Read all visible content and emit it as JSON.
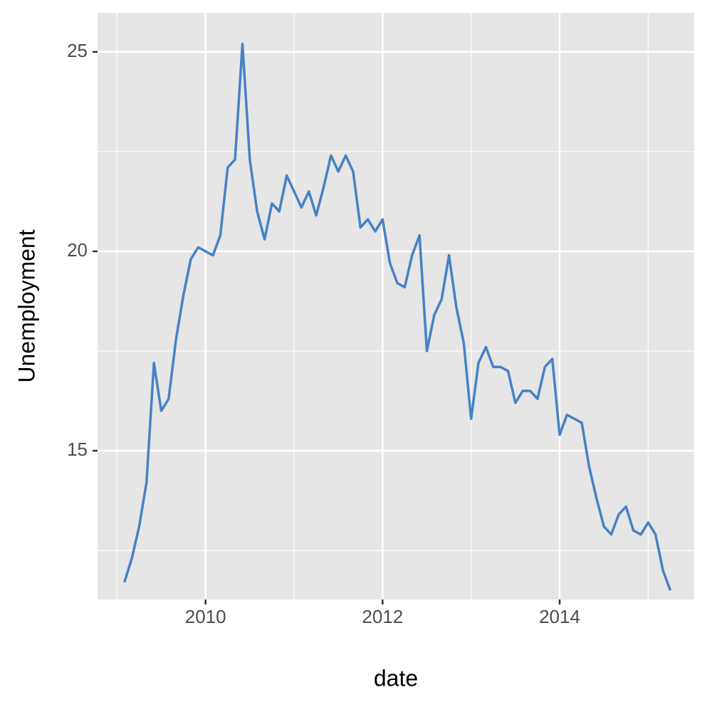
{
  "chart_data": {
    "type": "line",
    "xlabel": "date",
    "ylabel": "Unemployment",
    "color": "#4682c4",
    "x": [
      2009.083,
      2009.167,
      2009.25,
      2009.333,
      2009.417,
      2009.5,
      2009.583,
      2009.667,
      2009.75,
      2009.833,
      2009.917,
      2010,
      2010.083,
      2010.167,
      2010.25,
      2010.333,
      2010.417,
      2010.5,
      2010.583,
      2010.667,
      2010.75,
      2010.833,
      2010.917,
      2011,
      2011.083,
      2011.167,
      2011.25,
      2011.333,
      2011.417,
      2011.5,
      2011.583,
      2011.667,
      2011.75,
      2011.833,
      2011.917,
      2012,
      2012.083,
      2012.167,
      2012.25,
      2012.333,
      2012.417,
      2012.5,
      2012.583,
      2012.667,
      2012.75,
      2012.833,
      2012.917,
      2013,
      2013.083,
      2013.167,
      2013.25,
      2013.333,
      2013.417,
      2013.5,
      2013.583,
      2013.667,
      2013.75,
      2013.833,
      2013.917,
      2014,
      2014.083,
      2014.167,
      2014.25,
      2014.333,
      2014.417,
      2014.5,
      2014.583,
      2014.667,
      2014.75,
      2014.833,
      2014.917,
      2015,
      2015.083,
      2015.167,
      2015.25
    ],
    "values": [
      11.7,
      12.3,
      13.1,
      14.2,
      17.2,
      16.0,
      16.3,
      17.8,
      18.9,
      19.8,
      20.1,
      20.0,
      19.9,
      20.4,
      22.1,
      22.3,
      25.2,
      22.3,
      21.0,
      20.3,
      21.2,
      21.0,
      21.9,
      21.5,
      21.1,
      21.5,
      20.9,
      21.6,
      22.4,
      22.0,
      22.4,
      22.0,
      20.6,
      20.8,
      20.5,
      20.8,
      19.7,
      19.2,
      19.1,
      19.9,
      20.4,
      17.5,
      18.4,
      18.8,
      19.9,
      18.6,
      17.7,
      15.8,
      17.2,
      17.6,
      17.1,
      17.1,
      17.0,
      16.2,
      16.5,
      16.5,
      16.3,
      17.1,
      17.3,
      15.4,
      15.9,
      15.8,
      15.7,
      14.6,
      13.8,
      13.1,
      12.9,
      13.4,
      13.6,
      13.0,
      12.9,
      13.2,
      12.9,
      12.0,
      11.5
    ],
    "xlim": [
      2008.78,
      2015.52
    ],
    "ylim": [
      11.27,
      25.98
    ],
    "xticks": [
      2010,
      2012,
      2014
    ],
    "yticks": [
      15,
      20,
      25
    ],
    "xminor": [
      2009,
      2011,
      2013,
      2015
    ],
    "yminor": [
      12.5,
      17.5,
      22.5
    ],
    "grid": true
  }
}
